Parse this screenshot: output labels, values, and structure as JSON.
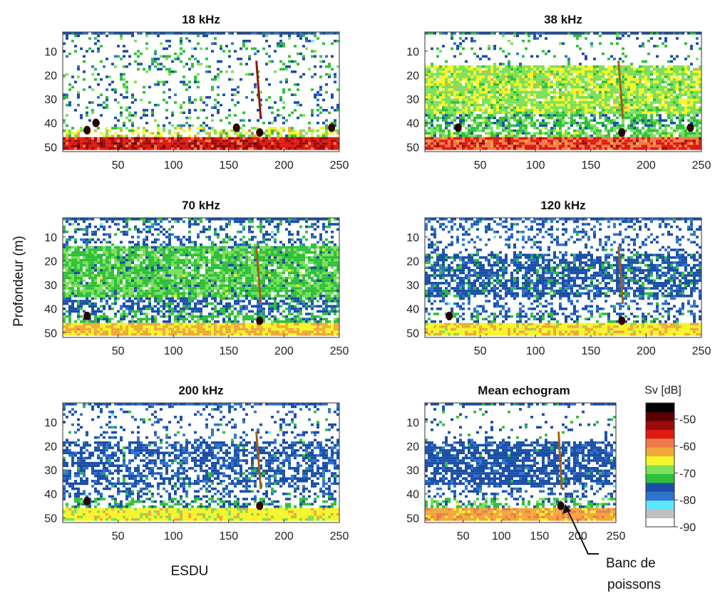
{
  "figure": {
    "ylabel": "Profondeur (m)",
    "xlabel": "ESDU",
    "colorbar_title": "Sv [dB]",
    "annotation": [
      "Banc de",
      "poissons"
    ]
  },
  "chart_data": [
    {
      "type": "heatmap",
      "title": "18 kHz",
      "xlim": [
        0,
        250
      ],
      "ylim": [
        52,
        2
      ],
      "y_inverted": true,
      "xticks": [
        50,
        100,
        150,
        200,
        250
      ],
      "yticks": [
        10,
        20,
        30,
        40,
        50
      ],
      "profile": "f18",
      "schools": [
        {
          "x": 30,
          "y": 40
        },
        {
          "x": 178,
          "y": 44
        },
        {
          "x": 22,
          "y": 43
        },
        {
          "x": 157,
          "y": 42
        },
        {
          "x": 243,
          "y": 42
        }
      ]
    },
    {
      "type": "heatmap",
      "title": "38 kHz",
      "xlim": [
        0,
        250
      ],
      "ylim": [
        52,
        2
      ],
      "y_inverted": true,
      "xticks": [
        50,
        100,
        150,
        200,
        250
      ],
      "yticks": [
        10,
        20,
        30,
        40,
        50
      ],
      "profile": "f38",
      "schools": [
        {
          "x": 178,
          "y": 44
        },
        {
          "x": 30,
          "y": 42
        },
        {
          "x": 240,
          "y": 42
        }
      ]
    },
    {
      "type": "heatmap",
      "title": "70 kHz",
      "xlim": [
        0,
        250
      ],
      "ylim": [
        52,
        2
      ],
      "y_inverted": true,
      "xticks": [
        50,
        100,
        150,
        200,
        250
      ],
      "yticks": [
        10,
        20,
        30,
        40,
        50
      ],
      "profile": "f70",
      "schools": [
        {
          "x": 178,
          "y": 45
        },
        {
          "x": 22,
          "y": 43
        }
      ]
    },
    {
      "type": "heatmap",
      "title": "120 kHz",
      "xlim": [
        0,
        250
      ],
      "ylim": [
        52,
        2
      ],
      "y_inverted": true,
      "xticks": [
        50,
        100,
        150,
        200,
        250
      ],
      "yticks": [
        10,
        20,
        30,
        40,
        50
      ],
      "profile": "f120",
      "schools": [
        {
          "x": 178,
          "y": 45
        },
        {
          "x": 22,
          "y": 43
        }
      ]
    },
    {
      "type": "heatmap",
      "title": "200 kHz",
      "xlim": [
        0,
        250
      ],
      "ylim": [
        52,
        2
      ],
      "y_inverted": true,
      "xticks": [
        50,
        100,
        150,
        200,
        250
      ],
      "yticks": [
        10,
        20,
        30,
        40,
        50
      ],
      "profile": "f200",
      "schools": [
        {
          "x": 178,
          "y": 45
        },
        {
          "x": 22,
          "y": 43
        }
      ]
    },
    {
      "type": "heatmap",
      "title": "Mean echogram",
      "xlim": [
        0,
        250
      ],
      "ylim": [
        52,
        2
      ],
      "y_inverted": true,
      "xticks": [
        50,
        100,
        150,
        200,
        250
      ],
      "yticks": [
        10,
        20,
        30,
        40,
        50
      ],
      "profile": "mean",
      "schools": [
        {
          "x": 178,
          "y": 45
        }
      ]
    }
  ],
  "colorbar": {
    "ticks": [
      -50,
      -60,
      -70,
      -80,
      -90
    ],
    "range": [
      -90,
      -44
    ],
    "colors": [
      "#ffffff",
      "#bfbfbf",
      "#5fe6ff",
      "#2f74cc",
      "#1a4fa8",
      "#2fbf3a",
      "#7be05a",
      "#f5f52a",
      "#f0a83a",
      "#f07a4a",
      "#e01a10",
      "#9b0a0a",
      "#5a0000",
      "#000000"
    ]
  }
}
